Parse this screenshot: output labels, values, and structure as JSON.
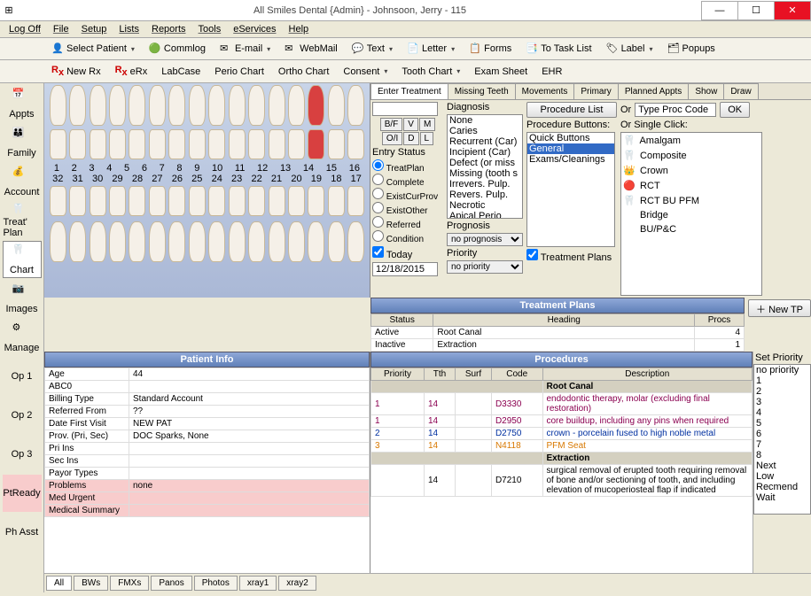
{
  "window": {
    "title": "All Smiles Dental {Admin} - Johnsoon, Jerry - 115"
  },
  "menu": [
    "Log Off",
    "File",
    "Setup",
    "Lists",
    "Reports",
    "Tools",
    "eServices",
    "Help"
  ],
  "tb1": [
    "Select Patient",
    "Commlog",
    "E-mail",
    "WebMail",
    "Text",
    "Letter",
    "Forms",
    "To Task List",
    "Label",
    "Popups"
  ],
  "tb2": [
    "New Rx",
    "eRx",
    "LabCase",
    "Perio Chart",
    "Ortho Chart",
    "Consent",
    "Tooth Chart",
    "Exam Sheet",
    "EHR"
  ],
  "nav": [
    "Appts",
    "Family",
    "Account",
    "Treat' Plan",
    "Chart",
    "Images",
    "Manage",
    "Op 1",
    "Op 2",
    "Op 3",
    "PtReady",
    "Ph Asst"
  ],
  "navActive": 4,
  "teethTop": [
    1,
    2,
    3,
    4,
    5,
    6,
    7,
    8,
    9,
    10,
    11,
    12,
    13,
    14,
    15,
    16
  ],
  "teethBot": [
    32,
    31,
    30,
    29,
    28,
    27,
    26,
    25,
    24,
    23,
    22,
    21,
    20,
    19,
    18,
    17
  ],
  "enterTabs": [
    "Enter Treatment",
    "Missing Teeth",
    "Movements",
    "Primary",
    "Planned Appts",
    "Show",
    "Draw"
  ],
  "surfBtns": [
    "B/F",
    "V",
    "M",
    "O/I",
    "D",
    "L"
  ],
  "entryStatusLabel": "Entry Status",
  "entryStatus": [
    "TreatPlan",
    "Complete",
    "ExistCurProv",
    "ExistOther",
    "Referred",
    "Condition"
  ],
  "entryStatusSel": 0,
  "todayLabel": "Today",
  "today": "12/18/2015",
  "diagLabel": "Diagnosis",
  "diag": [
    "None",
    "Caries",
    "Recurrent (Car)",
    "Incipient (Car)",
    "Defect (or miss",
    "Missing (tooth s",
    "Irrevers. Pulp.",
    "Revers. Pulp.",
    "Necrotic",
    "Apical Perio"
  ],
  "progLabel": "Prognosis",
  "prog": "no prognosis",
  "prioLabel": "Priority",
  "prio": "no priority",
  "procListBtn": "Procedure List",
  "orLabel": "Or",
  "typeCode": "Type Proc Code",
  "okBtn": "OK",
  "procBtnsLabel": "Procedure Buttons:",
  "procBtns": [
    "Quick Buttons",
    "General",
    "Exams/Cleanings"
  ],
  "procBtnsSel": 1,
  "singleLabel": "Or Single Click:",
  "single": [
    "Amalgam",
    "Composite",
    "Crown",
    "RCT",
    "RCT BU PFM",
    "Bridge",
    "BU/P&C"
  ],
  "tpCheck": "Treatment Plans",
  "tpHdr": "Treatment Plans",
  "newTp": "New TP",
  "tpCols": [
    "Status",
    "Heading",
    "Procs"
  ],
  "tpRows": [
    [
      "Active",
      "Root Canal",
      "4"
    ],
    [
      "Inactive",
      "Extraction",
      "1"
    ]
  ],
  "piHdr": "Patient Info",
  "piRows": [
    [
      "Age",
      "44"
    ],
    [
      "ABC0",
      ""
    ],
    [
      "Billing Type",
      "Standard Account"
    ],
    [
      "Referred From",
      "??"
    ],
    [
      "Date First Visit",
      "NEW PAT"
    ],
    [
      "Prov. (Pri, Sec)",
      "DOC Sparks, None"
    ],
    [
      "Pri Ins",
      ""
    ],
    [
      "Sec Ins",
      ""
    ],
    [
      "Payor Types",
      ""
    ],
    [
      "Problems",
      "none"
    ],
    [
      "Med Urgent",
      ""
    ],
    [
      "Medical Summary",
      ""
    ]
  ],
  "piPink": [
    9,
    10,
    11
  ],
  "procHdr": "Procedures",
  "procCols": [
    "Priority",
    "Tth",
    "Surf",
    "Code",
    "Description"
  ],
  "procGroups": [
    {
      "name": "Root Canal",
      "rows": [
        {
          "c": "grn",
          "p": "1",
          "t": "14",
          "s": "",
          "code": "D3330",
          "d": "endodontic therapy, molar (excluding final restoration)"
        },
        {
          "c": "grn",
          "p": "1",
          "t": "14",
          "s": "",
          "code": "D2950",
          "d": "core buildup, including any pins when required"
        },
        {
          "c": "blu",
          "p": "2",
          "t": "14",
          "s": "",
          "code": "D2750",
          "d": "crown - porcelain fused to high noble metal"
        },
        {
          "c": "org",
          "p": "3",
          "t": "14",
          "s": "",
          "code": "N4118",
          "d": "PFM Seat"
        }
      ]
    },
    {
      "name": "Extraction",
      "rows": [
        {
          "c": "",
          "p": "",
          "t": "14",
          "s": "",
          "code": "D7210",
          "d": "surgical removal of erupted tooth requiring removal of bone and/or sectioning of tooth, and including elevation of mucoperiosteal flap if indicated"
        }
      ]
    }
  ],
  "setPrioLabel": "Set Priority",
  "setPrio": [
    "no priority",
    "1",
    "2",
    "3",
    "4",
    "5",
    "6",
    "7",
    "8",
    "Next",
    "Low",
    "Recmend",
    "Wait"
  ],
  "botTabs": [
    "All",
    "BWs",
    "FMXs",
    "Panos",
    "Photos",
    "xray1",
    "xray2"
  ]
}
